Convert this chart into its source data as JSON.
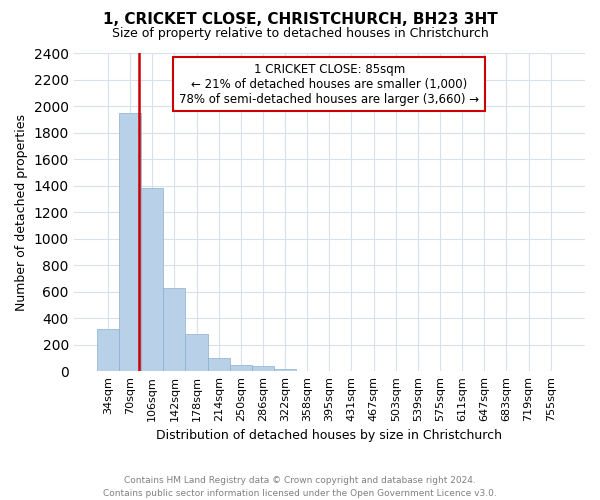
{
  "title": "1, CRICKET CLOSE, CHRISTCHURCH, BH23 3HT",
  "subtitle": "Size of property relative to detached houses in Christchurch",
  "xlabel": "Distribution of detached houses by size in Christchurch",
  "ylabel": "Number of detached properties",
  "footnote1": "Contains HM Land Registry data © Crown copyright and database right 2024.",
  "footnote2": "Contains public sector information licensed under the Open Government Licence v3.0.",
  "categories": [
    "34sqm",
    "70sqm",
    "106sqm",
    "142sqm",
    "178sqm",
    "214sqm",
    "250sqm",
    "286sqm",
    "322sqm",
    "358sqm",
    "395sqm",
    "431sqm",
    "467sqm",
    "503sqm",
    "539sqm",
    "575sqm",
    "611sqm",
    "647sqm",
    "683sqm",
    "719sqm",
    "755sqm"
  ],
  "values": [
    320,
    1950,
    1380,
    630,
    280,
    100,
    50,
    40,
    20,
    0,
    0,
    0,
    0,
    0,
    0,
    0,
    0,
    0,
    0,
    0,
    0
  ],
  "bar_color": "#b8d0e8",
  "bar_edge_color": "#8ab0cc",
  "ylim": [
    0,
    2400
  ],
  "yticks": [
    0,
    200,
    400,
    600,
    800,
    1000,
    1200,
    1400,
    1600,
    1800,
    2000,
    2200,
    2400
  ],
  "annotation_line1": "1 CRICKET CLOSE: 85sqm",
  "annotation_line2": "← 21% of detached houses are smaller (1,000)",
  "annotation_line3": "78% of semi-detached houses are larger (3,660) →",
  "vline_color": "#cc0000",
  "annotation_box_color": "#cc0000",
  "grid_color": "#d5e2ee",
  "background_color": "#ffffff",
  "title_fontsize": 11,
  "subtitle_fontsize": 9,
  "ylabel_fontsize": 9,
  "xlabel_fontsize": 9,
  "tick_fontsize": 8,
  "annot_fontsize": 8.5,
  "footnote_fontsize": 6.5
}
